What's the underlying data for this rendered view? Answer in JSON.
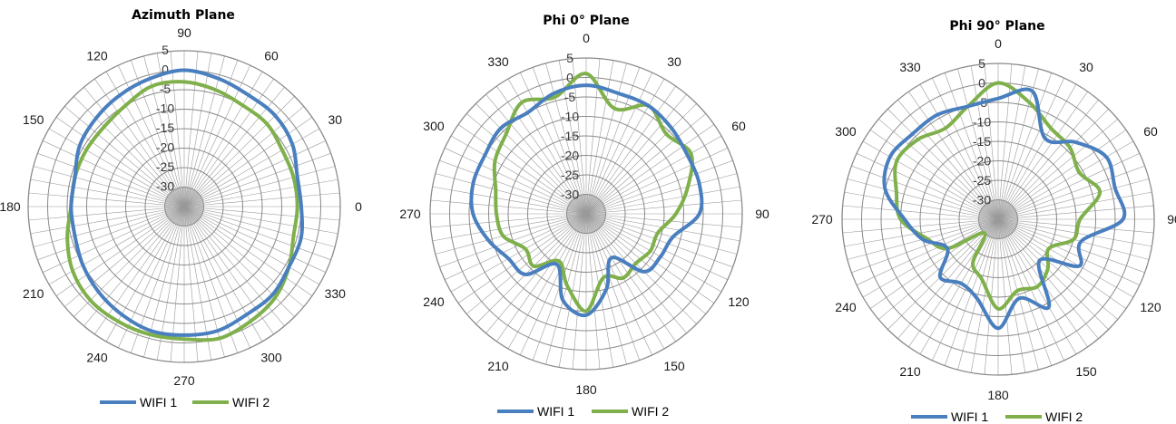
{
  "colors": {
    "wifi1": "#4a7fbf",
    "wifi2": "#7fb04b",
    "grid": "#9a9a9a",
    "center": "#d0d0d0"
  },
  "charts": [
    {
      "chart_data": {
        "type": "line",
        "polar": true,
        "title": "Azimuth Plane",
        "angle_labels": [
          "90",
          "60",
          "30",
          "0",
          "330",
          "300",
          "270",
          "240",
          "210",
          "180",
          "150",
          "120"
        ],
        "r_tick_labels": [
          "5",
          "0",
          "-5",
          "-10",
          "-15",
          "-20",
          "-25",
          "-30"
        ],
        "rlim": [
          -35,
          5
        ],
        "legend": "bottom",
        "series": [
          {
            "name": "WIFI 1",
            "theta": [
              0,
              15,
              30,
              45,
              60,
              75,
              90,
              105,
              120,
              135,
              150,
              165,
              180,
              195,
              210,
              225,
              240,
              255,
              270,
              285,
              300,
              315,
              330,
              345
            ],
            "r": [
              -5,
              -5,
              -3,
              -2,
              -2,
              -1,
              0,
              -1,
              -2,
              -3,
              -4,
              -6,
              -6,
              -6,
              -5,
              -4,
              -3,
              -2,
              -2,
              -2,
              -3,
              -3,
              -4,
              -4
            ]
          },
          {
            "name": "WIFI 2",
            "theta": [
              0,
              15,
              30,
              45,
              60,
              75,
              90,
              105,
              120,
              135,
              150,
              165,
              180,
              195,
              210,
              225,
              240,
              255,
              270,
              285,
              300,
              315,
              330,
              345
            ],
            "r": [
              -6,
              -6,
              -6,
              -5,
              -5,
              -4,
              -3,
              -3,
              -5,
              -6,
              -6,
              -6,
              -6,
              -4,
              -2,
              -1,
              -1,
              -1,
              -1,
              0,
              -1,
              -2,
              -4,
              -6
            ]
          }
        ]
      }
    },
    {
      "chart_data": {
        "type": "line",
        "polar": true,
        "title": "Phi 0° Plane",
        "angle_labels": [
          "0",
          "30",
          "60",
          "90",
          "120",
          "150",
          "180",
          "210",
          "240",
          "270",
          "300",
          "330"
        ],
        "r_tick_labels": [
          "5",
          "0",
          "-5",
          "-10",
          "-15",
          "-20",
          "-25",
          "-30"
        ],
        "rlim": [
          -35,
          5
        ],
        "legend": "bottom",
        "series": [
          {
            "name": "WIFI 1",
            "theta": [
              0,
              15,
              30,
              45,
              60,
              75,
              90,
              105,
              120,
              135,
              150,
              165,
              180,
              195,
              210,
              225,
              240,
              255,
              270,
              285,
              300,
              315,
              330,
              345
            ],
            "r": [
              -2,
              -3,
              -3,
              -4,
              -5,
              -5,
              -6,
              -12,
              -13,
              -14,
              -22,
              -15,
              -9,
              -12,
              -20,
              -13,
              -12,
              -9,
              -6,
              -5,
              -5,
              -4,
              -5,
              -3
            ]
          },
          {
            "name": "WIFI 2",
            "theta": [
              0,
              15,
              30,
              45,
              60,
              75,
              90,
              105,
              120,
              135,
              150,
              165,
              180,
              195,
              210,
              225,
              240,
              255,
              270,
              285,
              300,
              315,
              330,
              345
            ],
            "r": [
              1,
              -7,
              -3,
              -6,
              -4,
              -8,
              -12,
              -16,
              -16,
              -17,
              -16,
              -18,
              -10,
              -16,
              -21,
              -16,
              -17,
              -13,
              -12,
              -11,
              -8,
              -6,
              -2,
              -4
            ]
          }
        ]
      }
    },
    {
      "chart_data": {
        "type": "line",
        "polar": true,
        "title": "Phi 90° Plane",
        "angle_labels": [
          "0",
          "30",
          "60",
          "90",
          "120",
          "150",
          "180",
          "210",
          "240",
          "270",
          "300",
          "330"
        ],
        "r_tick_labels": [
          "5",
          "0",
          "-5",
          "-10",
          "-15",
          "-20",
          "-25",
          "-30"
        ],
        "rlim": [
          -35,
          5
        ],
        "legend": "bottom",
        "series": [
          {
            "name": "WIFI 1",
            "theta": [
              0,
              15,
              30,
              45,
              60,
              75,
              90,
              105,
              120,
              135,
              150,
              165,
              180,
              195,
              210,
              225,
              240,
              255,
              270,
              285,
              300,
              315,
              330,
              345
            ],
            "r": [
              -4,
              -1,
              -11,
              -7,
              -3,
              -4,
              -3,
              -13,
              -11,
              -20,
              -9,
              -14,
              -7,
              -14,
              -16,
              -14,
              -20,
              -15,
              -11,
              -5,
              -3,
              -4,
              -4,
              -5
            ]
          },
          {
            "name": "WIFI 2",
            "theta": [
              0,
              15,
              30,
              45,
              60,
              75,
              90,
              105,
              120,
              135,
              150,
              165,
              180,
              195,
              210,
              225,
              240,
              255,
              270,
              285,
              300,
              315,
              330,
              345
            ],
            "r": [
              0,
              -4,
              -8,
              -9,
              -11,
              -8,
              -14,
              -15,
              -20,
              -17,
              -15,
              -16,
              -12,
              -19,
              -22,
              -30,
              -20,
              -16,
              -10,
              -8,
              -5,
              -6,
              -8,
              -5
            ]
          }
        ]
      }
    }
  ],
  "legend": {
    "wifi1": "WIFI 1",
    "wifi2": "WIFI 2"
  }
}
